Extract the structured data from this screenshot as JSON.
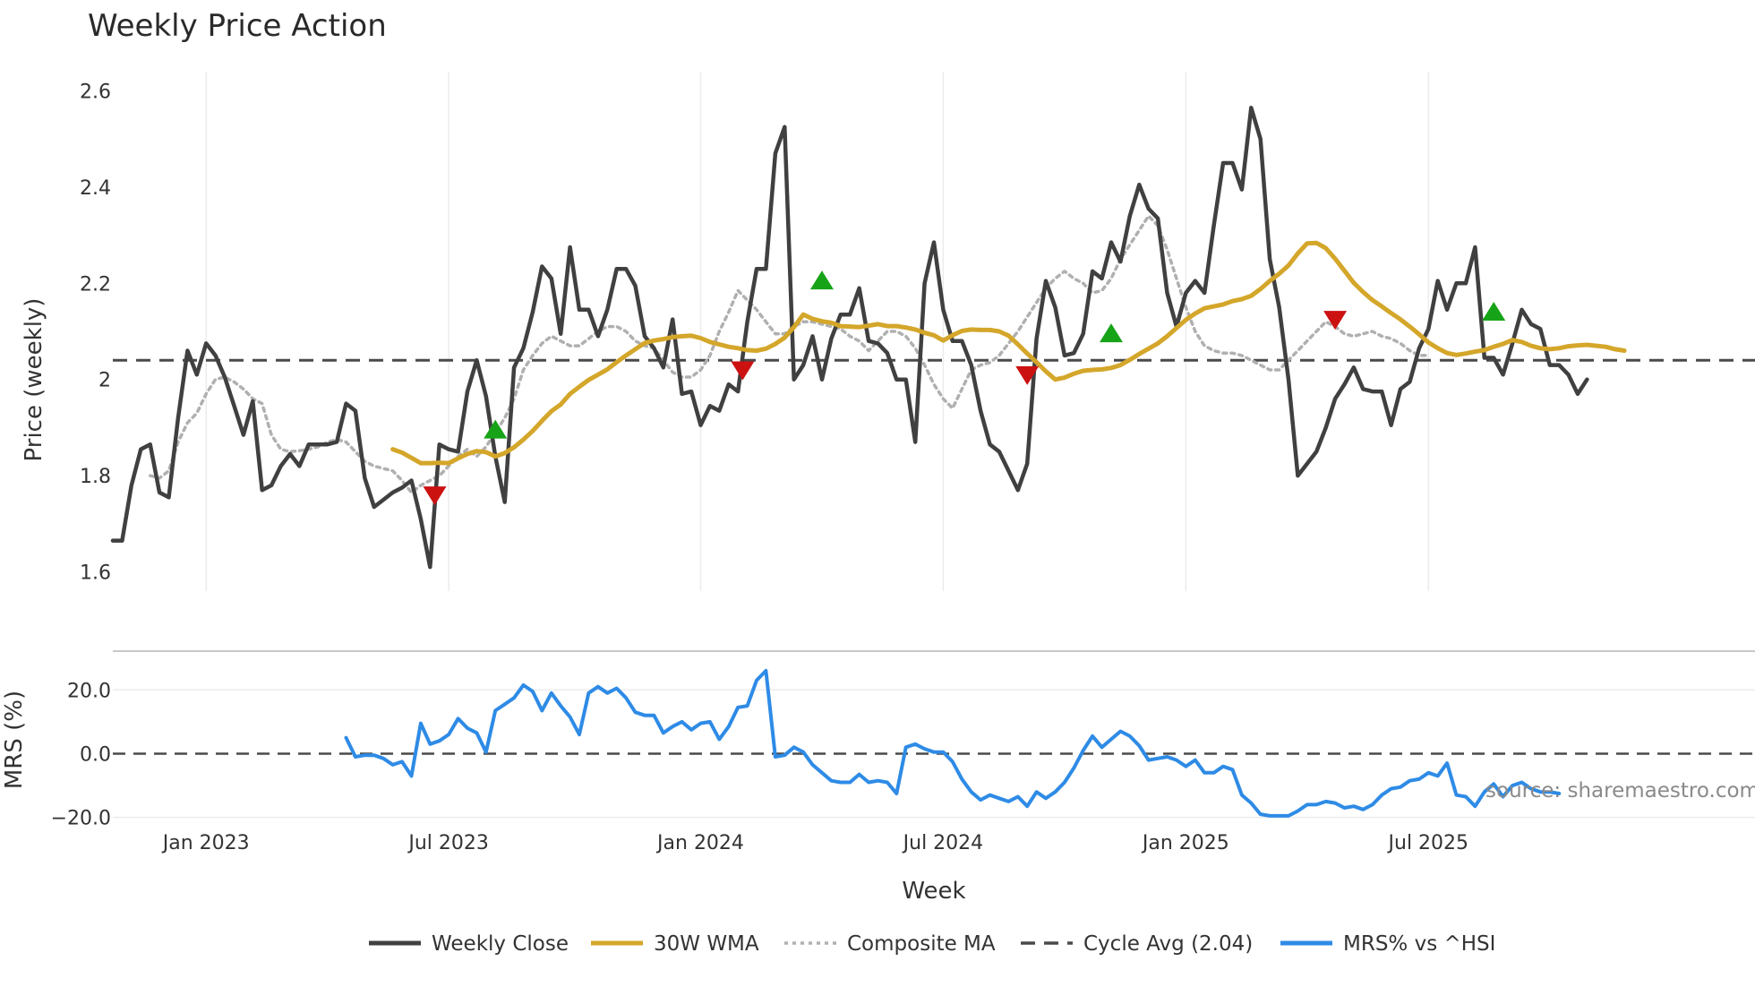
{
  "chart_data": [
    {
      "type": "line",
      "title": "Weekly Price Action",
      "ylabel": "Price (weekly)",
      "ylim": [
        1.56,
        2.64
      ],
      "yticks": [
        {
          "value": 1.6,
          "label": "1.6"
        },
        {
          "value": 1.8,
          "label": "1.8"
        },
        {
          "value": 2.0,
          "label": "2"
        },
        {
          "value": 2.2,
          "label": "2.2"
        },
        {
          "value": 2.4,
          "label": "2.4"
        },
        {
          "value": 2.6,
          "label": "2.6"
        }
      ],
      "x_week_range": [
        0,
        176
      ],
      "x_gridlines_week": [
        10,
        36,
        63,
        89,
        115,
        141
      ],
      "series": [
        {
          "name": "Weekly Close",
          "color": "#404040",
          "start_week": 0,
          "values": [
            1.665,
            1.665,
            1.78,
            1.855,
            1.865,
            1.765,
            1.755,
            1.92,
            2.06,
            2.01,
            2.075,
            2.05,
            2.005,
            1.945,
            1.885,
            1.955,
            1.77,
            1.78,
            1.82,
            1.845,
            1.82,
            1.865,
            1.865,
            1.865,
            1.87,
            1.95,
            1.935,
            1.795,
            1.735,
            1.75,
            1.765,
            1.775,
            1.79,
            1.71,
            1.61,
            1.865,
            1.855,
            1.85,
            1.975,
            2.04,
            1.965,
            1.84,
            1.745,
            2.025,
            2.065,
            2.14,
            2.235,
            2.21,
            2.095,
            2.275,
            2.145,
            2.145,
            2.09,
            2.145,
            2.23,
            2.23,
            2.195,
            2.09,
            2.065,
            2.025,
            2.125,
            1.97,
            1.975,
            1.905,
            1.945,
            1.935,
            1.99,
            1.975,
            2.12,
            2.23,
            2.23,
            2.47,
            2.525,
            2.0,
            2.03,
            2.09,
            2.0,
            2.085,
            2.135,
            2.135,
            2.19,
            2.08,
            2.075,
            2.055,
            2.0,
            2.0,
            1.87,
            2.2,
            2.285,
            2.145,
            2.08,
            2.08,
            2.03,
            1.935,
            1.865,
            1.85,
            1.81,
            1.77,
            1.825,
            2.085,
            2.205,
            2.15,
            2.05,
            2.055,
            2.095,
            2.225,
            2.21,
            2.285,
            2.245,
            2.34,
            2.405,
            2.355,
            2.335,
            2.18,
            2.11,
            2.18,
            2.205,
            2.18,
            2.32,
            2.45,
            2.45,
            2.395,
            2.565,
            2.5,
            2.25,
            2.15,
            2.0,
            1.8,
            1.825,
            1.85,
            1.9,
            1.96,
            1.99,
            2.025,
            1.98,
            1.975,
            1.975,
            1.905,
            1.98,
            1.995,
            2.065,
            2.105,
            2.205,
            2.145,
            2.2,
            2.2,
            2.275,
            2.045,
            2.045,
            2.01,
            2.075,
            2.145,
            2.115,
            2.105,
            2.03,
            2.03,
            2.01,
            1.97,
            2.0
          ]
        },
        {
          "name": "30W WMA",
          "color": "#d4a62a",
          "start_week": 30,
          "values": [
            1.855,
            1.848,
            1.837,
            1.826,
            1.826,
            1.827,
            1.826,
            1.836,
            1.845,
            1.851,
            1.849,
            1.84,
            1.847,
            1.859,
            1.875,
            1.893,
            1.914,
            1.934,
            1.948,
            1.97,
            1.985,
            1.999,
            2.01,
            2.021,
            2.036,
            2.05,
            2.063,
            2.076,
            2.081,
            2.084,
            2.088,
            2.09,
            2.091,
            2.086,
            2.078,
            2.073,
            2.068,
            2.065,
            2.061,
            2.06,
            2.064,
            2.074,
            2.087,
            2.109,
            2.135,
            2.126,
            2.121,
            2.118,
            2.111,
            2.11,
            2.109,
            2.112,
            2.115,
            2.111,
            2.111,
            2.108,
            2.104,
            2.097,
            2.092,
            2.081,
            2.092,
            2.101,
            2.104,
            2.103,
            2.103,
            2.1,
            2.091,
            2.073,
            2.054,
            2.036,
            2.017,
            2.0,
            2.004,
            2.012,
            2.018,
            2.02,
            2.021,
            2.024,
            2.03,
            2.041,
            2.053,
            2.064,
            2.075,
            2.09,
            2.107,
            2.124,
            2.137,
            2.148,
            2.152,
            2.156,
            2.163,
            2.167,
            2.174,
            2.188,
            2.205,
            2.22,
            2.237,
            2.262,
            2.283,
            2.284,
            2.273,
            2.251,
            2.226,
            2.201,
            2.182,
            2.165,
            2.152,
            2.138,
            2.125,
            2.11,
            2.094,
            2.077,
            2.065,
            2.055,
            2.051,
            2.054,
            2.058,
            2.061,
            2.068,
            2.074,
            2.082,
            2.078,
            2.07,
            2.065,
            2.063,
            2.065,
            2.069,
            2.071,
            2.072,
            2.07,
            2.068,
            2.063,
            2.06
          ]
        },
        {
          "name": "Composite MA",
          "color": "#b0b0b0",
          "start_week": 4,
          "values": [
            1.8,
            1.795,
            1.81,
            1.87,
            1.91,
            1.93,
            1.97,
            2.0,
            2.005,
            1.995,
            1.98,
            1.96,
            1.95,
            1.885,
            1.855,
            1.85,
            1.852,
            1.855,
            1.86,
            1.87,
            1.875,
            1.87,
            1.85,
            1.83,
            1.82,
            1.815,
            1.81,
            1.79,
            1.765,
            1.78,
            1.79,
            1.8,
            1.82,
            1.84,
            1.855,
            1.84,
            1.86,
            1.89,
            1.92,
            1.96,
            2.02,
            2.05,
            2.075,
            2.09,
            2.08,
            2.07,
            2.07,
            2.085,
            2.1,
            2.11,
            2.11,
            2.1,
            2.08,
            2.07,
            2.065,
            2.04,
            2.015,
            2.005,
            2.005,
            2.02,
            2.05,
            2.1,
            2.14,
            2.185,
            2.165,
            2.145,
            2.12,
            2.095,
            2.095,
            2.11,
            2.12,
            2.12,
            2.115,
            2.11,
            2.105,
            2.09,
            2.08,
            2.06,
            2.08,
            2.1,
            2.1,
            2.09,
            2.065,
            2.03,
            1.99,
            1.96,
            1.94,
            1.98,
            2.02,
            2.03,
            2.035,
            2.05,
            2.075,
            2.1,
            2.13,
            2.16,
            2.19,
            2.21,
            2.225,
            2.21,
            2.2,
            2.18,
            2.185,
            2.21,
            2.25,
            2.28,
            2.31,
            2.34,
            2.32,
            2.27,
            2.21,
            2.15,
            2.1,
            2.07,
            2.06,
            2.055,
            2.055,
            2.05,
            2.04,
            2.03,
            2.02,
            2.02,
            2.04,
            2.06,
            2.08,
            2.1,
            2.12,
            2.11,
            2.095,
            2.09,
            2.095,
            2.1,
            2.09,
            2.085,
            2.075,
            2.06,
            2.05,
            2.05
          ]
        },
        {
          "name": "Cycle Avg (2.04)",
          "color": "#4a4a4a",
          "value": 2.04
        }
      ],
      "markers": [
        {
          "type": "sell",
          "week": 34.5,
          "price": 1.76,
          "color": "#cc1111"
        },
        {
          "type": "buy",
          "week": 41,
          "price": 1.895,
          "color": "#17a317"
        },
        {
          "type": "sell",
          "week": 67.5,
          "price": 2.02,
          "color": "#cc1111"
        },
        {
          "type": "buy",
          "week": 76,
          "price": 2.205,
          "color": "#17a317"
        },
        {
          "type": "sell",
          "week": 98,
          "price": 2.01,
          "color": "#cc1111"
        },
        {
          "type": "buy",
          "week": 107,
          "price": 2.095,
          "color": "#17a317"
        },
        {
          "type": "sell",
          "week": 131,
          "price": 2.125,
          "color": "#cc1111"
        },
        {
          "type": "buy",
          "week": 148,
          "price": 2.14,
          "color": "#17a317"
        }
      ]
    },
    {
      "type": "line",
      "xlabel": "Week",
      "ylabel": "MRS (%)",
      "ylim": [
        -21.5,
        28.5
      ],
      "yticks": [
        {
          "value": -20,
          "label": "−20.0"
        },
        {
          "value": 0,
          "label": "0.0"
        },
        {
          "value": 20,
          "label": "20.0"
        }
      ],
      "zero_line": 0,
      "xticks": [
        {
          "week": 10,
          "label": "Jan 2023"
        },
        {
          "week": 36,
          "label": "Jul 2023"
        },
        {
          "week": 63,
          "label": "Jan 2024"
        },
        {
          "week": 89,
          "label": "Jul 2024"
        },
        {
          "week": 115,
          "label": "Jan 2025"
        },
        {
          "week": 141,
          "label": "Jul 2025"
        }
      ],
      "series": [
        {
          "name": "MRS% vs ^HSI",
          "color": "#2e8be6",
          "start_week": 25,
          "values": [
            5,
            -1,
            -0.5,
            -0.5,
            -1.5,
            -3.5,
            -2.5,
            -7,
            9.5,
            3,
            4,
            6,
            11,
            8,
            6.5,
            0.5,
            13.5,
            15.5,
            17.5,
            21.5,
            19.5,
            13.5,
            19,
            15,
            11.5,
            6,
            19,
            21,
            19,
            20.5,
            17.5,
            13,
            12,
            12,
            6.5,
            8.5,
            10,
            7.5,
            9.5,
            10,
            4.5,
            8.5,
            14.5,
            15,
            23,
            26,
            -1,
            -0.5,
            2,
            0.5,
            -3.5,
            -6,
            -8.5,
            -9,
            -9,
            -6.5,
            -9,
            -8.5,
            -9,
            -12.5,
            2,
            3,
            1.5,
            0.5,
            0.5,
            -2.5,
            -8,
            -12,
            -14.5,
            -13,
            -14,
            -15,
            -13.5,
            -16.5,
            -12,
            -14,
            -12,
            -9,
            -4.5,
            1,
            5.5,
            2,
            4.5,
            7,
            5.5,
            2.5,
            -2,
            -1.5,
            -1,
            -2,
            -4,
            -2,
            -6,
            -6,
            -4,
            -5,
            -13,
            -15.5,
            -19,
            -19.5,
            -19.5,
            -19.5,
            -18,
            -16,
            -16,
            -15,
            -15.5,
            -17,
            -16.5,
            -17.5,
            -16,
            -13,
            -11,
            -10.5,
            -8.5,
            -8,
            -6,
            -7,
            -3,
            -13,
            -13.5,
            -16.5,
            -12,
            -9.5,
            -13.5,
            -10,
            -9,
            -11,
            -12,
            -12,
            -12.5
          ]
        }
      ]
    }
  ],
  "legend": [
    {
      "label": "Weekly Close",
      "style": "solid",
      "color": "#404040"
    },
    {
      "label": "30W WMA",
      "style": "solid",
      "color": "#d4a62a"
    },
    {
      "label": "Composite MA",
      "style": "dotted",
      "color": "#b0b0b0"
    },
    {
      "label": "Cycle Avg (2.04)",
      "style": "dashed",
      "color": "#4a4a4a"
    },
    {
      "label": "MRS% vs ^HSI",
      "style": "solid",
      "color": "#2e8be6"
    }
  ],
  "source_text": "source: sharemaestro.com"
}
